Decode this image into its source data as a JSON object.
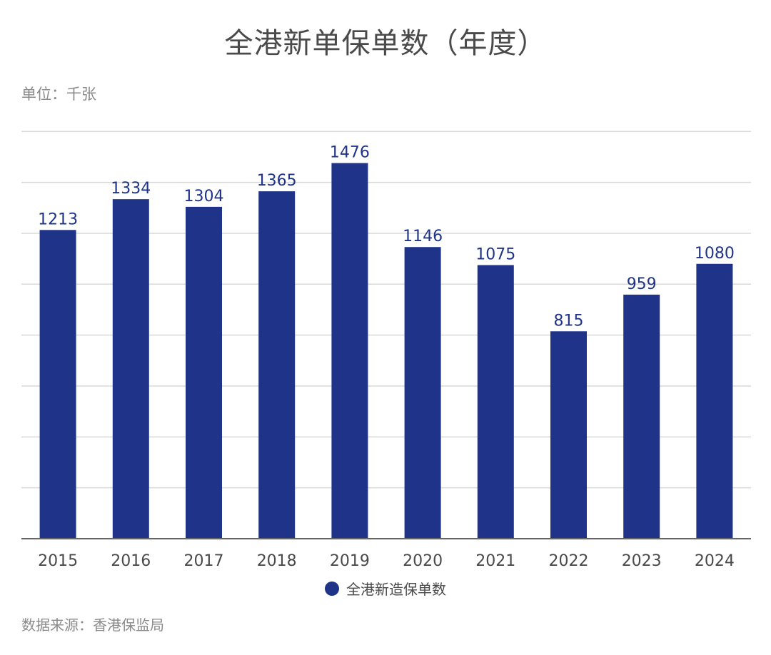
{
  "page": {
    "title": "全港新单保单数（年度）",
    "unit_label": "单位：千张",
    "source_label": "数据来源：香港保监局"
  },
  "chart_data": {
    "type": "bar",
    "title": "全港新单保单数（年度）",
    "xlabel": "",
    "ylabel": "",
    "categories": [
      "2015",
      "2016",
      "2017",
      "2018",
      "2019",
      "2020",
      "2021",
      "2022",
      "2023",
      "2024"
    ],
    "series": [
      {
        "name": "全港新造保单数",
        "values": [
          1213,
          1334,
          1304,
          1365,
          1476,
          1146,
          1075,
          815,
          959,
          1080
        ],
        "color": "#1f3489"
      }
    ],
    "ylim": [
      0,
      1600
    ],
    "y_axis_labels_shown": false,
    "grid": true,
    "gridline_count": 8,
    "legend_position": "bottom-center"
  }
}
